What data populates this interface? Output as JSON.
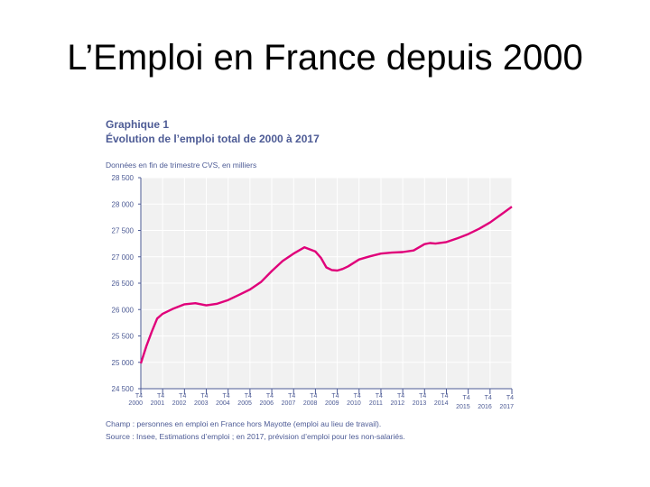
{
  "slide": {
    "title": "L’Emploi en France depuis 2000"
  },
  "figure": {
    "label": "Graphique 1",
    "title": "Évolution de l’emploi total de 2000 à 2017",
    "units": "Données en fin de trimestre CVS, en milliers",
    "note_champ": "Champ : personnes en emploi en France hors Mayotte (emploi au lieu de travail).",
    "note_source": "Source : Insee, Estimations d’emploi ; en 2017, prévision d’emploi pour les non-salariés."
  },
  "colors": {
    "line": "#e0007a",
    "text": "#4d5b95",
    "grid": "#ffffff",
    "plot_bg": "#f1f1f1",
    "axis": "#4d5b95"
  },
  "chart_data": {
    "type": "line",
    "title": "Évolution de l’emploi total de 2000 à 2017",
    "ylabel": "Données en fin de trimestre CVS, en milliers",
    "ylim": [
      24500,
      28500
    ],
    "yticks": [
      24500,
      25000,
      25500,
      26000,
      26500,
      27000,
      27500,
      28000,
      28500
    ],
    "ytick_labels": [
      "24 500",
      "25 000",
      "25 500",
      "26 000",
      "26 500",
      "27 000",
      "27 500",
      "28 000",
      "28 500"
    ],
    "xticks": [
      {
        "t": "T4",
        "y": "2000"
      },
      {
        "t": "T4",
        "y": "2001"
      },
      {
        "t": "T4",
        "y": "2002"
      },
      {
        "t": "T4",
        "y": "2003"
      },
      {
        "t": "T4",
        "y": "2004"
      },
      {
        "t": "T4",
        "y": "2005"
      },
      {
        "t": "T4",
        "y": "2006"
      },
      {
        "t": "T4",
        "y": "2007"
      },
      {
        "t": "T4",
        "y": "2008"
      },
      {
        "t": "T4",
        "y": "2009"
      },
      {
        "t": "T4",
        "y": "2010"
      },
      {
        "t": "T4",
        "y": "2011"
      },
      {
        "t": "T4",
        "y": "2012"
      },
      {
        "t": "T4",
        "y": "2013"
      },
      {
        "t": "T4",
        "y": "2014"
      },
      {
        "t": "T4",
        "y": "2015"
      },
      {
        "t": "T4",
        "y": "2016"
      },
      {
        "t": "T4",
        "y": "2017"
      }
    ],
    "grid": true,
    "series": [
      {
        "x": [
          2000.0,
          2000.25,
          2000.5,
          2000.75,
          2001.0,
          2001.5,
          2002.0,
          2002.5,
          2003.0,
          2003.5,
          2004.0,
          2004.5,
          2005.0,
          2005.5,
          2006.0,
          2006.5,
          2007.0,
          2007.5,
          2008.0,
          2008.25,
          2008.5,
          2008.75,
          2009.0,
          2009.25,
          2009.5,
          2010.0,
          2010.5,
          2011.0,
          2011.5,
          2012.0,
          2012.5,
          2013.0,
          2013.25,
          2013.5,
          2014.0,
          2014.5,
          2015.0,
          2015.5,
          2016.0,
          2016.5,
          2017.0
        ],
        "values": [
          24980,
          25300,
          25580,
          25830,
          25920,
          26020,
          26100,
          26120,
          26080,
          26110,
          26180,
          26280,
          26380,
          26520,
          26730,
          26920,
          27060,
          27180,
          27100,
          26980,
          26800,
          26750,
          26740,
          26770,
          26820,
          26950,
          27010,
          27060,
          27080,
          27090,
          27120,
          27240,
          27260,
          27250,
          27280,
          27350,
          27430,
          27530,
          27650,
          27800,
          27950
        ]
      }
    ]
  }
}
